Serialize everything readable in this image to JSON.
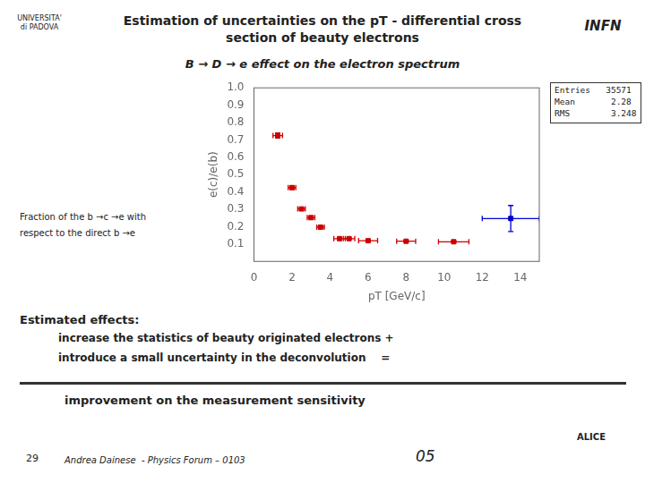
{
  "chart_data": {
    "type": "scatter",
    "title": "Estimation of uncertainties on the pT - differential cross\nsection of beauty electrons",
    "subtitle": "B → D → e effect on the electron spectrum",
    "xlabel": "pT [GeV/c]",
    "ylabel": "e(c)/e(b)",
    "xlim": [
      0,
      15
    ],
    "ylim": [
      0,
      1
    ],
    "xticks": [
      0,
      2,
      4,
      6,
      8,
      10,
      12,
      14
    ],
    "yticks": [
      0.1,
      0.2,
      0.3,
      0.4,
      0.5,
      0.6,
      0.7,
      0.8,
      0.9,
      {
        "value": 1,
        "label": "1.0"
      }
    ],
    "grid": false,
    "series": [
      {
        "color": "#cc0000",
        "marker": "square",
        "x": [
          1.25,
          2.0,
          2.5,
          3.0,
          3.5,
          4.5,
          5.0,
          6.0,
          8.0,
          10.5
        ],
        "values": [
          0.725,
          0.425,
          0.302,
          0.252,
          0.197,
          0.131,
          0.131,
          0.119,
          0.116,
          0.113
        ],
        "xerr": [
          0.25,
          0.2,
          0.2,
          0.2,
          0.2,
          0.3,
          0.3,
          0.5,
          0.5,
          0.8
        ],
        "yerr": [
          0.015,
          0.01,
          0.008,
          0.008,
          0.007,
          0.004,
          0.004,
          0.004,
          0.004,
          0.004
        ]
      },
      {
        "color": "#0000cc",
        "marker": "square",
        "x": [
          13.5
        ],
        "values": [
          0.247
        ],
        "xerr": [
          1.5
        ],
        "yerr": [
          0.075
        ]
      }
    ],
    "annotations": [
      "UNIVERSITA'\ndi PADOVA",
      "INFN",
      "Fraction of the b →c →e with",
      "respect to the direct b →e",
      "Estimated effects:",
      "increase the statistics of beauty originated electrons +",
      "introduce a small uncertainty in the deconvolution    =",
      "improvement on the measurement sensitivity",
      "29",
      "Andrea Dainese  - Physics Forum – 0103",
      "05",
      "ALICE",
      "Entries   35571",
      "Mean       2.28",
      "RMS        3.248"
    ]
  }
}
